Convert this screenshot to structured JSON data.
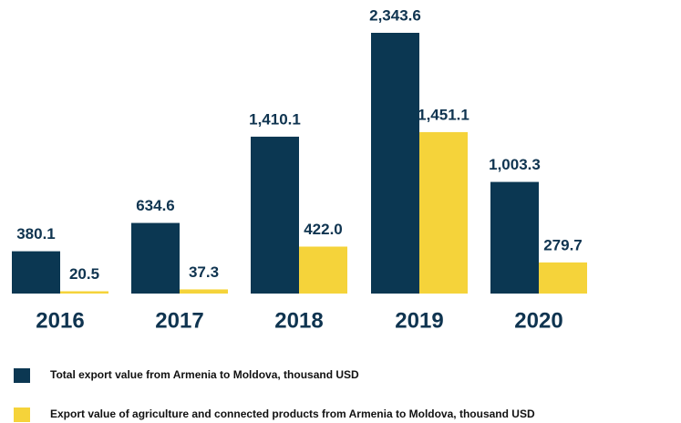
{
  "chart_data": {
    "type": "bar",
    "categories": [
      "2016",
      "2017",
      "2018",
      "2019",
      "2020"
    ],
    "series": [
      {
        "name": "Total export value from Armenia to Moldova, thousand USD",
        "color": "#0b3752",
        "values": [
          380.1,
          634.6,
          1410.1,
          2343.6,
          1003.3
        ],
        "value_labels": [
          "380.1",
          "634.6",
          "1,410.1",
          "2,343.6",
          "1,003.3"
        ]
      },
      {
        "name": "Export value of agriculture and connected products from Armenia to Moldova, thousand USD",
        "color": "#f5d33a",
        "values": [
          20.5,
          37.3,
          422.0,
          1451.1,
          279.7
        ],
        "value_labels": [
          "20.5",
          "37.3",
          "422.0",
          "1,451.1",
          "279.7"
        ]
      }
    ]
  }
}
